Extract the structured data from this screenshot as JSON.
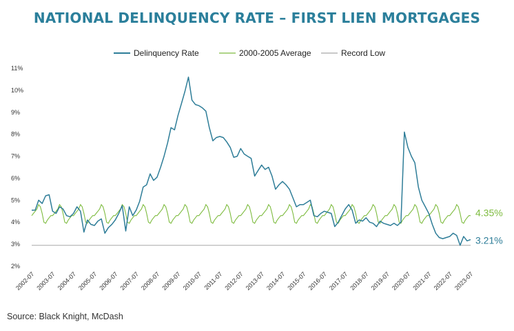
{
  "chart_data": {
    "type": "line",
    "title": "NATIONAL DELINQUENCY RATE – FIRST LIEN MORTGAGES",
    "source": "Source: Black Knight, McDash",
    "x_tick_labels": [
      "2002-07",
      "2003-07",
      "2004-07",
      "2005-07",
      "2006-07",
      "2007-07",
      "2008-07",
      "2009-07",
      "2010-07",
      "2011-07",
      "2012-07",
      "2013-07",
      "2014-07",
      "2015-07",
      "2016-07",
      "2017-07",
      "2018-07",
      "2019-07",
      "2020-07",
      "2021-07",
      "2022-07",
      "2023-07"
    ],
    "y_tick_labels": [
      "2%",
      "3%",
      "4%",
      "5%",
      "6%",
      "7%",
      "8%",
      "9%",
      "10%",
      "11%"
    ],
    "ylim": [
      2,
      11
    ],
    "xlim": [
      "2002-07",
      "2023-07"
    ],
    "grid": false,
    "legend_position": "top",
    "series": [
      {
        "name": "Delinquency Rate",
        "color": "#2e7d98",
        "end_label": "3.21%",
        "points": [
          [
            "2002-07",
            4.55
          ],
          [
            "2002-09",
            4.55
          ],
          [
            "2002-11",
            5.0
          ],
          [
            "2003-01",
            4.85
          ],
          [
            "2003-03",
            5.2
          ],
          [
            "2003-05",
            5.25
          ],
          [
            "2003-07",
            4.5
          ],
          [
            "2003-09",
            4.4
          ],
          [
            "2003-11",
            4.7
          ],
          [
            "2004-01",
            4.6
          ],
          [
            "2004-03",
            4.3
          ],
          [
            "2004-05",
            4.25
          ],
          [
            "2004-07",
            4.4
          ],
          [
            "2004-09",
            4.7
          ],
          [
            "2004-11",
            4.5
          ],
          [
            "2005-01",
            3.55
          ],
          [
            "2005-03",
            4.1
          ],
          [
            "2005-05",
            3.9
          ],
          [
            "2005-07",
            3.85
          ],
          [
            "2005-09",
            4.05
          ],
          [
            "2005-11",
            4.15
          ],
          [
            "2006-01",
            3.5
          ],
          [
            "2006-03",
            3.75
          ],
          [
            "2006-05",
            3.9
          ],
          [
            "2006-07",
            4.1
          ],
          [
            "2006-09",
            4.4
          ],
          [
            "2006-11",
            4.75
          ],
          [
            "2007-01",
            3.6
          ],
          [
            "2007-03",
            4.7
          ],
          [
            "2007-05",
            4.3
          ],
          [
            "2007-07",
            4.55
          ],
          [
            "2007-09",
            4.95
          ],
          [
            "2007-11",
            5.6
          ],
          [
            "2008-01",
            5.7
          ],
          [
            "2008-03",
            6.2
          ],
          [
            "2008-05",
            5.9
          ],
          [
            "2008-07",
            6.05
          ],
          [
            "2008-09",
            6.5
          ],
          [
            "2008-11",
            7.0
          ],
          [
            "2009-01",
            7.6
          ],
          [
            "2009-03",
            8.3
          ],
          [
            "2009-05",
            8.2
          ],
          [
            "2009-07",
            8.85
          ],
          [
            "2009-09",
            9.4
          ],
          [
            "2009-11",
            9.95
          ],
          [
            "2010-01",
            10.6
          ],
          [
            "2010-03",
            9.55
          ],
          [
            "2010-05",
            9.35
          ],
          [
            "2010-07",
            9.3
          ],
          [
            "2010-09",
            9.2
          ],
          [
            "2010-11",
            9.05
          ],
          [
            "2011-01",
            8.3
          ],
          [
            "2011-03",
            7.7
          ],
          [
            "2011-05",
            7.85
          ],
          [
            "2011-07",
            7.9
          ],
          [
            "2011-09",
            7.85
          ],
          [
            "2011-11",
            7.65
          ],
          [
            "2012-01",
            7.4
          ],
          [
            "2012-03",
            6.95
          ],
          [
            "2012-05",
            7.0
          ],
          [
            "2012-07",
            7.35
          ],
          [
            "2012-09",
            7.1
          ],
          [
            "2012-11",
            7.0
          ],
          [
            "2013-01",
            6.9
          ],
          [
            "2013-03",
            6.1
          ],
          [
            "2013-05",
            6.35
          ],
          [
            "2013-07",
            6.6
          ],
          [
            "2013-09",
            6.4
          ],
          [
            "2013-11",
            6.5
          ],
          [
            "2014-01",
            6.1
          ],
          [
            "2014-03",
            5.5
          ],
          [
            "2014-05",
            5.7
          ],
          [
            "2014-07",
            5.85
          ],
          [
            "2014-09",
            5.7
          ],
          [
            "2014-11",
            5.5
          ],
          [
            "2015-01",
            5.1
          ],
          [
            "2015-03",
            4.7
          ],
          [
            "2015-05",
            4.8
          ],
          [
            "2015-07",
            4.8
          ],
          [
            "2015-09",
            4.9
          ],
          [
            "2015-11",
            5.0
          ],
          [
            "2016-01",
            4.3
          ],
          [
            "2016-03",
            4.25
          ],
          [
            "2016-05",
            4.4
          ],
          [
            "2016-07",
            4.5
          ],
          [
            "2016-09",
            4.45
          ],
          [
            "2016-11",
            4.4
          ],
          [
            "2017-01",
            3.8
          ],
          [
            "2017-03",
            4.0
          ],
          [
            "2017-05",
            4.3
          ],
          [
            "2017-07",
            4.6
          ],
          [
            "2017-09",
            4.8
          ],
          [
            "2017-11",
            4.55
          ],
          [
            "2018-01",
            3.95
          ],
          [
            "2018-03",
            4.1
          ],
          [
            "2018-05",
            4.05
          ],
          [
            "2018-07",
            4.2
          ],
          [
            "2018-09",
            4.0
          ],
          [
            "2018-11",
            3.95
          ],
          [
            "2019-01",
            3.8
          ],
          [
            "2019-03",
            4.05
          ],
          [
            "2019-05",
            3.95
          ],
          [
            "2019-07",
            3.9
          ],
          [
            "2019-09",
            3.85
          ],
          [
            "2019-11",
            3.95
          ],
          [
            "2020-01",
            3.85
          ],
          [
            "2020-03",
            4.0
          ],
          [
            "2020-05",
            8.1
          ],
          [
            "2020-07",
            7.4
          ],
          [
            "2020-09",
            7.0
          ],
          [
            "2020-11",
            6.7
          ],
          [
            "2021-01",
            5.6
          ],
          [
            "2021-03",
            5.0
          ],
          [
            "2021-05",
            4.7
          ],
          [
            "2021-07",
            4.4
          ],
          [
            "2021-09",
            3.9
          ],
          [
            "2021-11",
            3.5
          ],
          [
            "2022-01",
            3.3
          ],
          [
            "2022-03",
            3.25
          ],
          [
            "2022-05",
            3.3
          ],
          [
            "2022-07",
            3.35
          ],
          [
            "2022-09",
            3.5
          ],
          [
            "2022-11",
            3.4
          ],
          [
            "2023-01",
            2.95
          ],
          [
            "2023-03",
            3.35
          ],
          [
            "2023-05",
            3.15
          ],
          [
            "2023-07",
            3.21
          ]
        ]
      },
      {
        "name": "2000-2005 Average",
        "color": "#7dbb3e",
        "end_label": "4.35%",
        "seasonal_profile": [
          4.3,
          4.4,
          4.5,
          4.6,
          4.8,
          4.7,
          4.4,
          4.0,
          3.95,
          4.1,
          4.2,
          4.3
        ],
        "profile_start_month": 7,
        "x_range": [
          "2002-07",
          "2023-07"
        ]
      },
      {
        "name": "Record Low",
        "color": "#a8a8a8",
        "value": 2.95,
        "x_range": [
          "2002-07",
          "2023-07"
        ]
      }
    ]
  },
  "source_label": "Source: Black Knight, McDash"
}
